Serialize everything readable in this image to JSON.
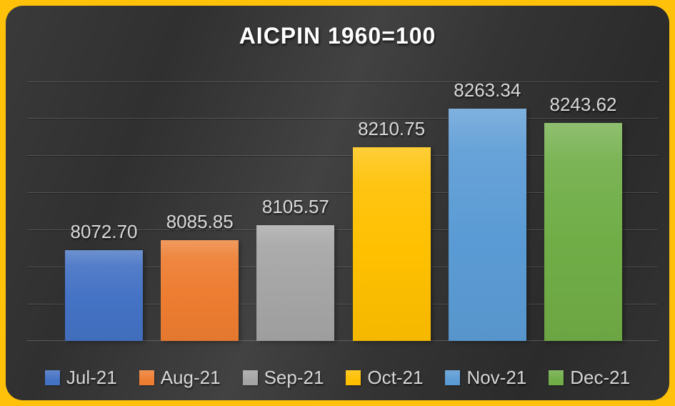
{
  "chart": {
    "frame_color": "#FFC109",
    "background_color": "#333333",
    "gridline_color": "rgba(255,255,255,0.16)",
    "label_color": "#D9D9D9",
    "title_color": "#FFFFFF"
  },
  "chart_data": {
    "type": "bar",
    "title": "AICPIN 1960=100",
    "categories": [
      "Jul-21",
      "Aug-21",
      "Sep-21",
      "Oct-21",
      "Nov-21",
      "Dec-21"
    ],
    "values": [
      8072.7,
      8085.85,
      8105.57,
      8210.75,
      8263.34,
      8243.62
    ],
    "value_labels": [
      "8072.70",
      "8085.85",
      "8105.57",
      "8210.75",
      "8263.34",
      "8243.62"
    ],
    "colors": [
      "#4472C4",
      "#ED7D31",
      "#A5A5A5",
      "#FFC000",
      "#5B9BD5",
      "#70AD47"
    ],
    "xlabel": "",
    "ylabel": "",
    "ylim": [
      7950,
      8315
    ],
    "gridline_step": 50,
    "grid": true,
    "legend_position": "bottom",
    "data_labels": true,
    "y_axis_labels_visible": false
  }
}
